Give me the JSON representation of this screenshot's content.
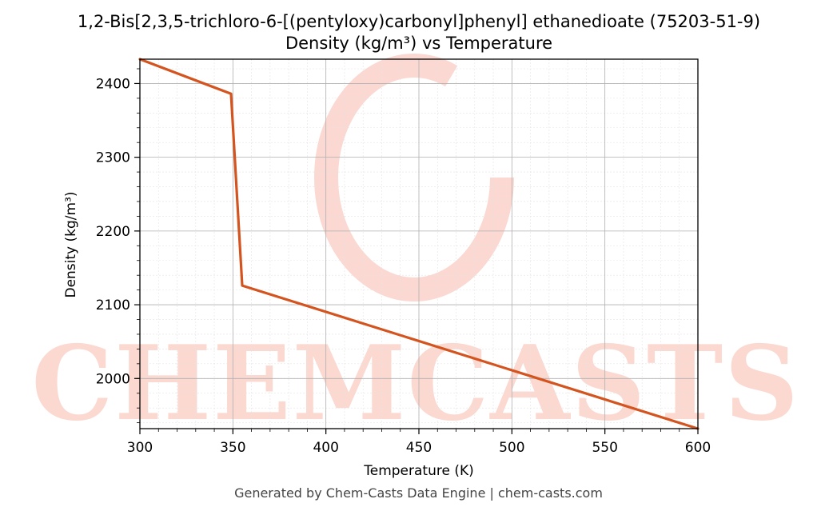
{
  "chart_data": {
    "type": "line",
    "title": "1,2-Bis[2,3,5-trichloro-6-[(pentyloxy)carbonyl]phenyl] ethanedioate (75203-51-9)",
    "subtitle": "Density (kg/m³) vs Temperature",
    "xlabel": "Temperature (K)",
    "ylabel": "Density (kg/m³)",
    "xlim": [
      300,
      600
    ],
    "ylim": [
      1932,
      2433
    ],
    "xticks": [
      300,
      350,
      400,
      450,
      500,
      550,
      600
    ],
    "yticks": [
      2000,
      2100,
      2200,
      2300,
      2400
    ],
    "grid": true,
    "series": [
      {
        "color": "#d4541f",
        "x": [
          300,
          349,
          355,
          600
        ],
        "y": [
          2433,
          2386,
          2126,
          1932
        ]
      }
    ]
  },
  "watermark": {
    "text": "CHEMCASTS",
    "color": "#fbd4cc"
  },
  "footer": "Generated by Chem-Casts Data Engine | chem-casts.com"
}
